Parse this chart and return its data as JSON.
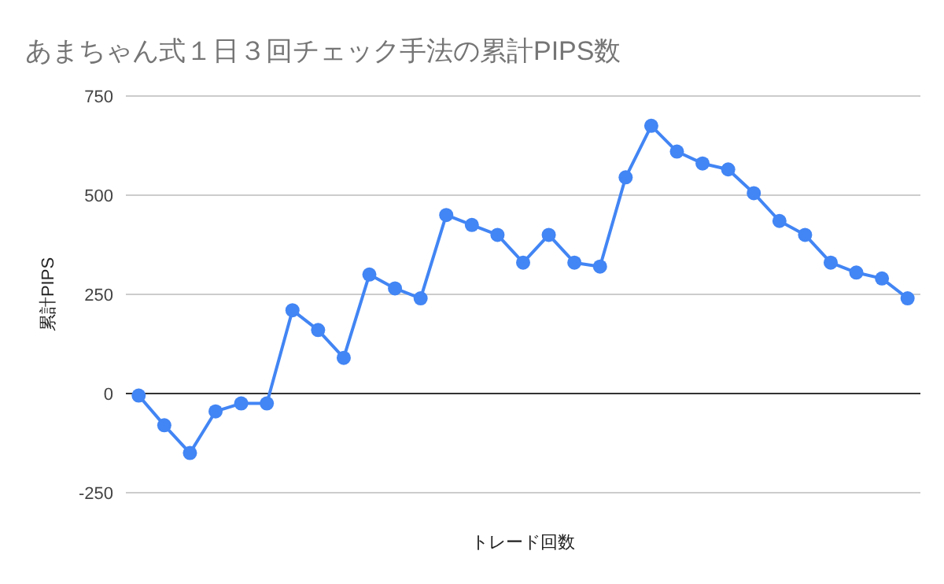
{
  "chart_data": {
    "type": "line",
    "title": "あまちゃん式１日３回チェック手法の累計PIPS数",
    "xlabel": "トレード回数",
    "ylabel": "累計PIPS",
    "categories": [
      null,
      null,
      null,
      null,
      null,
      null,
      null,
      null,
      null,
      null,
      null,
      null,
      null,
      null,
      null,
      null,
      null,
      null,
      null,
      null,
      null,
      null,
      null,
      null,
      null,
      null,
      null,
      null,
      null,
      null,
      null
    ],
    "series": [
      {
        "color": "#4285f4",
        "values": [
          -5,
          -80,
          -150,
          -45,
          -25,
          -25,
          210,
          160,
          90,
          300,
          265,
          240,
          450,
          425,
          400,
          330,
          400,
          330,
          320,
          545,
          675,
          610,
          580,
          565,
          505,
          435,
          400,
          330,
          305,
          290,
          240
        ]
      }
    ],
    "ylim": [
      -250,
      750
    ],
    "yticks": [
      -250,
      0,
      250,
      500,
      750
    ],
    "grid": "y",
    "marker": "circle",
    "tick_labels": "y"
  }
}
